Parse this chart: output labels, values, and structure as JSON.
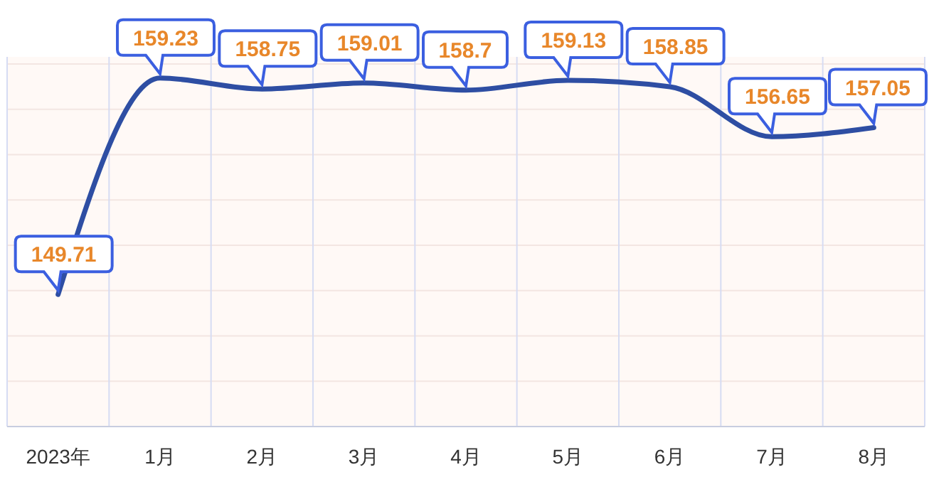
{
  "chart_data": {
    "type": "line",
    "categories": [
      "2023年",
      "1月",
      "2月",
      "3月",
      "4月",
      "5月",
      "6月",
      "7月",
      "8月"
    ],
    "series": [
      {
        "color": "#2e4ea3",
        "values": [
          149.71,
          159.23,
          158.75,
          159.01,
          158.7,
          159.13,
          158.85,
          156.65,
          157.05
        ]
      }
    ],
    "data_labels": true,
    "grid": true,
    "marker": "none",
    "line_style": "solid"
  }
}
